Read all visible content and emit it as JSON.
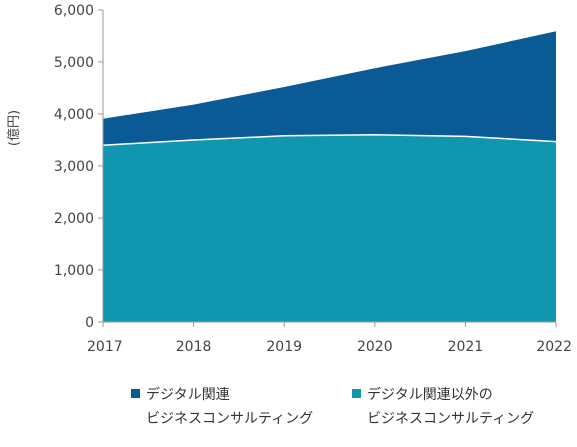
{
  "chart_data": {
    "type": "area",
    "stacked": true,
    "x": [
      "2017",
      "2018",
      "2019",
      "2020",
      "2021",
      "2022"
    ],
    "series": [
      {
        "name_line1": "デジタル関連以外の",
        "name_line2": "ビジネスコンサルティング",
        "color": "#1196b0",
        "values": [
          3400,
          3500,
          3580,
          3600,
          3570,
          3470
        ]
      },
      {
        "name_line1": "デジタル関連",
        "name_line2": "ビジネスコンサルティング",
        "color": "#0a5a96",
        "values": [
          510,
          680,
          940,
          1280,
          1640,
          2120
        ]
      }
    ],
    "yticks": [
      "0",
      "1,000",
      "2,000",
      "3,000",
      "4,000",
      "5,000",
      "6,000"
    ],
    "ylim": [
      0,
      6000
    ],
    "ylabel": "(億円)",
    "grid": false,
    "legend_position": "bottom"
  }
}
